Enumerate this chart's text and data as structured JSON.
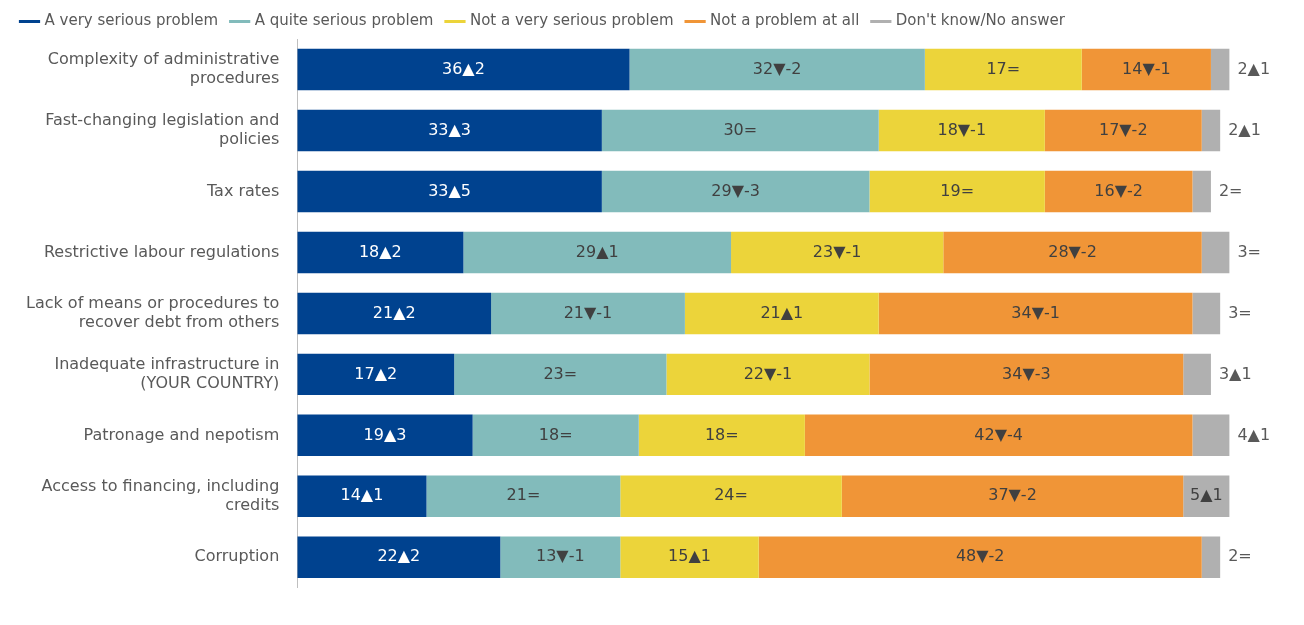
{
  "chart_data": {
    "type": "bar",
    "orientation": "horizontal",
    "stacked": true,
    "legend": "top",
    "categories": [
      "Complexity of administrative procedures",
      "Fast-changing legislation and policies",
      "Tax rates",
      "Restrictive labour regulations",
      "Lack of means or procedures to recover debt from others",
      "Inadequate infrastructure in (YOUR COUNTRY)",
      "Patronage and nepotism",
      "Access to financing, including credits",
      "Corruption"
    ],
    "series": [
      {
        "name": "A very serious problem",
        "color": "#00428f",
        "values": [
          36,
          33,
          33,
          18,
          21,
          17,
          19,
          14,
          22
        ],
        "value_labels": [
          "36▲2",
          "33▲3",
          "33▲5",
          "18▲2",
          "21▲2",
          "17▲2",
          "19▲3",
          "14▲1",
          "22▲2"
        ]
      },
      {
        "name": "A quite serious problem",
        "color": "#82bbbb",
        "values": [
          32,
          30,
          29,
          29,
          21,
          23,
          18,
          21,
          13
        ],
        "value_labels": [
          "32▼-2",
          "30=",
          "29▼-3",
          "29▲1",
          "21▼-1",
          "23=",
          "18=",
          "21=",
          "13▼-1"
        ]
      },
      {
        "name": "Not a very serious problem",
        "color": "#ecd43a",
        "values": [
          17,
          18,
          19,
          23,
          21,
          22,
          18,
          24,
          15
        ],
        "value_labels": [
          "17=",
          "18▼-1",
          "19=",
          "23▼-1",
          "21▲1",
          "22▼-1",
          "18=",
          "24=",
          "15▲1"
        ]
      },
      {
        "name": "Not a problem at all",
        "color": "#f09537",
        "values": [
          14,
          17,
          16,
          28,
          34,
          34,
          42,
          37,
          48
        ],
        "value_labels": [
          "14▼-1",
          "17▼-2",
          "16▼-2",
          "28▼-2",
          "34▼-1",
          "34▼-3",
          "42▼-4",
          "37▼-2",
          "48▼-2"
        ]
      },
      {
        "name": "Don't know/No answer",
        "color": "#b0b0b0",
        "values": [
          2,
          2,
          2,
          3,
          3,
          3,
          4,
          5,
          2
        ],
        "value_labels": [
          "2▲1",
          "2▲1",
          "2=",
          "3=",
          "3=",
          "3▲1",
          "4▲1",
          "5▲1",
          "2="
        ]
      }
    ]
  }
}
